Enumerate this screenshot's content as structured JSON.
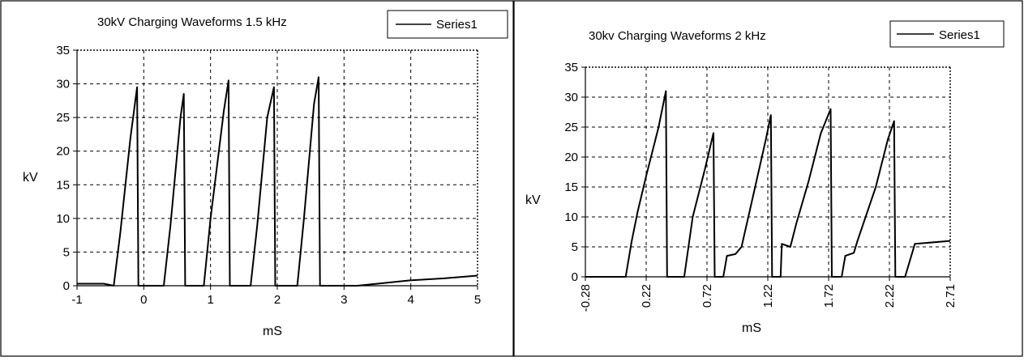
{
  "colors": {
    "line": "#000000",
    "grid": "#000000",
    "background": "#ffffff"
  },
  "chart_data": [
    {
      "type": "line",
      "title": "30kV Charging Waveforms 1.5 kHz",
      "xlabel": "mS",
      "ylabel": "kV",
      "xlim": [
        -1,
        5
      ],
      "ylim": [
        0,
        35
      ],
      "xticks": [
        "-1",
        "0",
        "1",
        "2",
        "3",
        "4",
        "5"
      ],
      "yticks": [
        "0",
        "5",
        "10",
        "15",
        "20",
        "25",
        "30",
        "35"
      ],
      "grid": true,
      "legend_position": "top-right",
      "series": [
        {
          "name": "Series1",
          "x": [
            -1.0,
            -0.6,
            -0.45,
            -0.35,
            -0.2,
            -0.1,
            -0.08,
            0.3,
            0.4,
            0.55,
            0.6,
            0.62,
            0.9,
            1.0,
            1.2,
            1.27,
            1.29,
            1.6,
            1.7,
            1.85,
            1.95,
            1.97,
            2.3,
            2.4,
            2.55,
            2.62,
            2.64,
            3.2,
            3.5,
            4.0,
            4.5,
            5.0
          ],
          "y": [
            0.3,
            0.3,
            0.0,
            8,
            22,
            29.5,
            0.0,
            0.0,
            9,
            25,
            28.5,
            0.0,
            0.0,
            10,
            26,
            30.5,
            0.0,
            0.0,
            9,
            25,
            29.5,
            0.0,
            0.0,
            10,
            27,
            31,
            0.0,
            0.0,
            0.3,
            0.8,
            1.1,
            1.5
          ]
        }
      ]
    },
    {
      "type": "line",
      "title": "30kv Charging Waveforms 2 kHz",
      "xlabel": "mS",
      "ylabel": "kV",
      "xlim": [
        -0.28,
        2.71
      ],
      "ylim": [
        0,
        35
      ],
      "xticks": [
        "-0.28",
        "0.22",
        "0.72",
        "1.22",
        "1.72",
        "2.22",
        "2.71"
      ],
      "yticks": [
        "0",
        "5",
        "10",
        "15",
        "20",
        "25",
        "30",
        "35"
      ],
      "grid": true,
      "legend_position": "top-right",
      "series": [
        {
          "name": "Series1",
          "x": [
            -0.28,
            0.05,
            0.1,
            0.15,
            0.22,
            0.32,
            0.38,
            0.39,
            0.53,
            0.6,
            0.7,
            0.77,
            0.78,
            0.85,
            0.88,
            0.95,
            1.0,
            1.1,
            1.2,
            1.24,
            1.25,
            1.32,
            1.33,
            1.4,
            1.45,
            1.55,
            1.65,
            1.73,
            1.74,
            1.82,
            1.85,
            1.92,
            1.95,
            2.1,
            2.2,
            2.25,
            2.26,
            2.34,
            2.42,
            2.71
          ],
          "y": [
            0.0,
            0.0,
            6,
            11,
            17,
            25,
            31,
            0.0,
            0.0,
            10,
            18,
            24,
            0.0,
            0.0,
            3.5,
            3.8,
            5,
            14,
            23,
            27,
            0.0,
            0.0,
            5.5,
            5,
            9,
            16,
            24,
            28,
            0.0,
            0.0,
            3.5,
            4,
            6,
            15,
            23,
            26,
            0.0,
            0.0,
            5.5,
            6
          ]
        }
      ]
    }
  ]
}
